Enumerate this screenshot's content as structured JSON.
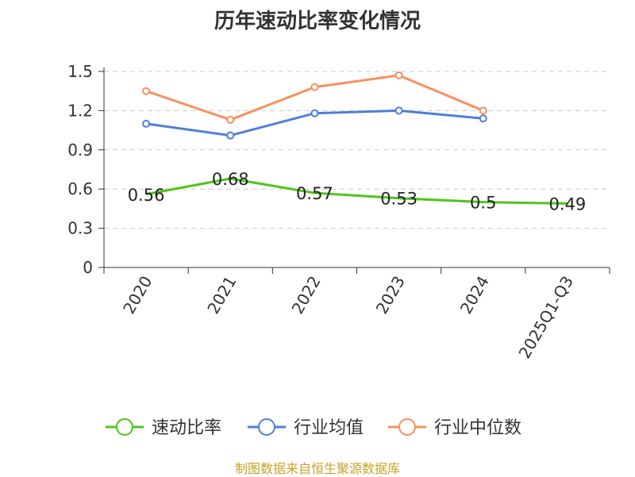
{
  "chart_data": {
    "type": "line",
    "title": "历年速动比率变化情况",
    "categories": [
      "2020",
      "2021",
      "2022",
      "2023",
      "2024",
      "2025Q1-Q3"
    ],
    "y_ticks": [
      "0",
      "0.3",
      "0.6",
      "0.9",
      "1.2",
      "1.5"
    ],
    "ylim": [
      0,
      1.5
    ],
    "grid": true,
    "legend_position": "bottom",
    "series": [
      {
        "name": "速动比率",
        "color": "#52c41a",
        "values": [
          0.56,
          0.68,
          0.57,
          0.53,
          0.5,
          0.49
        ],
        "labels": [
          "0.56",
          "0.68",
          "0.57",
          "0.53",
          "0.5",
          "0.49"
        ],
        "show_markers": false
      },
      {
        "name": "行业均值",
        "color": "#4e7fd8",
        "values": [
          1.1,
          1.01,
          1.18,
          1.2,
          1.14,
          null
        ],
        "show_markers": true
      },
      {
        "name": "行业中位数",
        "color": "#f79060",
        "values": [
          1.35,
          1.13,
          1.38,
          1.47,
          1.2,
          null
        ],
        "show_markers": true
      }
    ]
  },
  "source": "制图数据来自恒生聚源数据库"
}
